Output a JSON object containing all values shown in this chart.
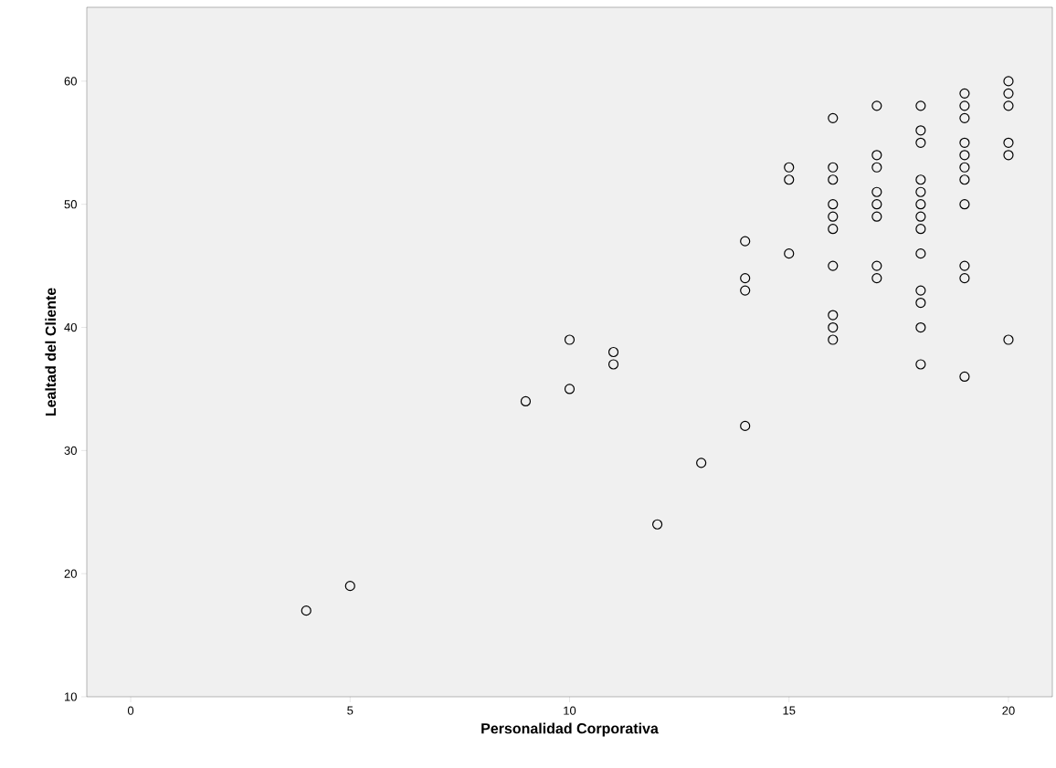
{
  "chart_data": {
    "type": "scatter",
    "xlabel": "Personalidad Corporativa",
    "ylabel": "Lealtad del Cliente",
    "x": [
      4,
      5,
      9,
      10,
      10,
      11,
      11,
      12,
      13,
      14,
      14,
      14,
      14,
      15,
      15,
      15,
      16,
      16,
      16,
      16,
      16,
      16,
      16,
      16,
      16,
      16,
      17,
      17,
      17,
      17,
      17,
      17,
      17,
      17,
      18,
      18,
      18,
      18,
      18,
      18,
      18,
      18,
      18,
      18,
      18,
      18,
      18,
      19,
      19,
      19,
      19,
      19,
      19,
      19,
      19,
      19,
      19,
      19,
      20,
      20,
      20,
      20,
      20,
      20
    ],
    "values": [
      17,
      19,
      34,
      39,
      35,
      38,
      37,
      24,
      29,
      47,
      44,
      43,
      32,
      53,
      52,
      46,
      57,
      53,
      52,
      50,
      49,
      48,
      45,
      41,
      40,
      39,
      58,
      54,
      53,
      51,
      50,
      49,
      45,
      44,
      58,
      56,
      55,
      52,
      51,
      50,
      49,
      48,
      46,
      43,
      42,
      40,
      37,
      59,
      58,
      57,
      55,
      54,
      53,
      52,
      50,
      45,
      44,
      36,
      60,
      59,
      58,
      55,
      54,
      39
    ],
    "color": "#000000",
    "marker": "circle",
    "xlim": [
      -1,
      21
    ],
    "ylim": [
      10,
      66
    ],
    "xticks": [
      0,
      5,
      10,
      15,
      20
    ],
    "yticks": [
      10,
      20,
      30,
      40,
      50,
      60
    ],
    "grid": false
  }
}
